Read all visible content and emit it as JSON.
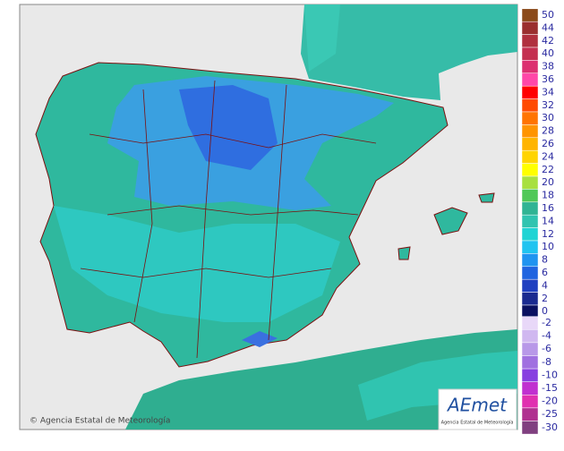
{
  "legend": {
    "entries": [
      {
        "label": "50",
        "color": "#8b4a1a"
      },
      {
        "label": "44",
        "color": "#9a2f2f"
      },
      {
        "label": "42",
        "color": "#b0303e"
      },
      {
        "label": "40",
        "color": "#c43050"
      },
      {
        "label": "38",
        "color": "#dc3070"
      },
      {
        "label": "36",
        "color": "#ff48a8"
      },
      {
        "label": "34",
        "color": "#ff0000"
      },
      {
        "label": "32",
        "color": "#ff4a00"
      },
      {
        "label": "30",
        "color": "#ff7400"
      },
      {
        "label": "28",
        "color": "#ff9400"
      },
      {
        "label": "26",
        "color": "#ffb400"
      },
      {
        "label": "24",
        "color": "#ffd400"
      },
      {
        "label": "22",
        "color": "#ffff00"
      },
      {
        "label": "20",
        "color": "#a8e040"
      },
      {
        "label": "18",
        "color": "#50c858"
      },
      {
        "label": "16",
        "color": "#30b494"
      },
      {
        "label": "14",
        "color": "#30c4b0"
      },
      {
        "label": "12",
        "color": "#20d4d4"
      },
      {
        "label": "10",
        "color": "#20c4f0"
      },
      {
        "label": "8",
        "color": "#2094f0"
      },
      {
        "label": "6",
        "color": "#2064e0"
      },
      {
        "label": "4",
        "color": "#2040c0"
      },
      {
        "label": "2",
        "color": "#1a2a90"
      },
      {
        "label": "0",
        "color": "#0a1060"
      }
    ],
    "negative_entries": [
      {
        "label": "-2",
        "color": "#e8d8f8"
      },
      {
        "label": "-4",
        "color": "#d0b8f0"
      },
      {
        "label": "-6",
        "color": "#b898e8"
      },
      {
        "label": "-8",
        "color": "#a070e0"
      },
      {
        "label": "-10",
        "color": "#8840e0"
      },
      {
        "label": "-15",
        "color": "#c030d0"
      },
      {
        "label": "-20",
        "color": "#e030b0"
      },
      {
        "label": "-25",
        "color": "#b03090"
      },
      {
        "label": "-30",
        "color": "#804080"
      }
    ]
  },
  "footer": {
    "copyright": "© Agencia Estatal de Meteorología"
  },
  "logo": {
    "name": "AEmet",
    "subtitle": "Agencia Estatal de Meteorología"
  }
}
